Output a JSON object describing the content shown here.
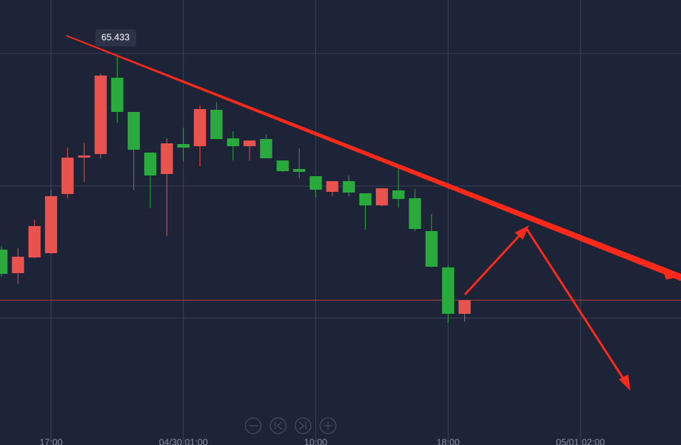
{
  "chart_data": {
    "type": "candlestick",
    "x": [
      0,
      1,
      2,
      3,
      4,
      5,
      6,
      7,
      8,
      9,
      10,
      11,
      12,
      13,
      14,
      15,
      16,
      17,
      18,
      19,
      20,
      21,
      22,
      23,
      24,
      25,
      26,
      27,
      28
    ],
    "open": [
      65.297,
      65.2805,
      65.2915,
      65.2945,
      65.336,
      65.3615,
      65.364,
      65.4175,
      65.3935,
      65.365,
      65.35,
      65.371,
      65.3695,
      65.395,
      65.375,
      65.3695,
      65.3745,
      65.3595,
      65.3535,
      65.3485,
      65.3375,
      65.345,
      65.3365,
      65.328,
      65.3385,
      65.333,
      65.31,
      65.2845,
      65.252
    ],
    "high": [
      65.2995,
      65.298,
      65.318,
      65.339,
      65.3685,
      65.372,
      65.4205,
      65.433,
      65.3935,
      65.365,
      65.375,
      65.3825,
      65.398,
      65.4005,
      65.38,
      65.3735,
      65.378,
      65.3595,
      65.368,
      65.3485,
      65.345,
      65.349,
      65.3365,
      65.34,
      65.355,
      65.3395,
      65.322,
      65.286,
      65.2615
    ],
    "low": [
      65.278,
      65.273,
      65.291,
      65.294,
      65.333,
      65.3445,
      65.361,
      65.386,
      65.3385,
      65.326,
      65.3065,
      65.359,
      65.3555,
      65.3745,
      65.3595,
      65.3595,
      65.361,
      65.3515,
      65.347,
      65.3335,
      65.3345,
      65.3345,
      65.311,
      65.3275,
      65.3265,
      65.31,
      65.2845,
      65.2455,
      65.2465
    ],
    "close": [
      65.28,
      65.292,
      65.3135,
      65.3345,
      65.3615,
      65.363,
      65.419,
      65.3935,
      65.367,
      65.349,
      65.3715,
      65.3685,
      65.3955,
      65.3745,
      65.3695,
      65.3735,
      65.361,
      65.352,
      65.3515,
      65.339,
      65.345,
      65.337,
      65.328,
      65.34,
      65.3325,
      65.3115,
      65.285,
      65.252,
      65.2615
    ],
    "up_color": "#e8534d",
    "down_color": "#2aaa3c",
    "current_price": 65.2615,
    "xlim": [
      -0.0862,
      41.08
    ],
    "xticks": [
      {
        "value": 3,
        "label": "17:00"
      },
      {
        "value": 11,
        "label": "04/30 01:00"
      },
      {
        "value": 19,
        "label": "10:00"
      },
      {
        "value": 27,
        "label": "18:00"
      },
      {
        "value": 35,
        "label": "05/01 02:00"
      }
    ],
    "ylim": [
      65.16,
      65.472
    ],
    "yticks": [
      65.4345,
      65.3415,
      65.249
    ],
    "grid": true
  }
}
